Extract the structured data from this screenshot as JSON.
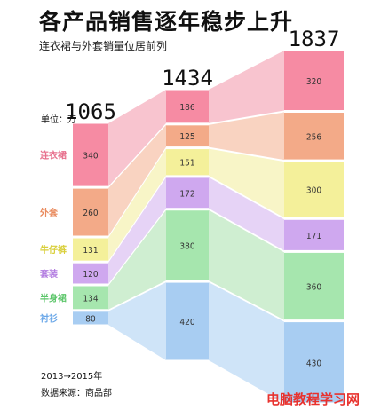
{
  "title": "各产品销售逐年稳步上升",
  "subtitle": "连衣裙与外套销量位居前列",
  "unit_label": "单位：万",
  "period": "2013→2015年",
  "source": "数据来源：商品部",
  "watermark": "电脑教程学习网",
  "colors": {
    "连衣裙": "#f68ba3",
    "外套": "#f3aa88",
    "牛仔裤": "#f4f09a",
    "套装": "#cfa8ef",
    "半身裙": "#a6e6ae",
    "衬衫": "#a8cdf2"
  },
  "link_colors": {
    "连衣裙": "#f8c4cf",
    "外套": "#f9d3c1",
    "牛仔裤": "#f8f5c7",
    "套装": "#e6d3f6",
    "半身裙": "#cfeed1",
    "衬衫": "#cfe4f8"
  },
  "label_colors": {
    "连衣裙": "#e76f8c",
    "外套": "#e98a5d",
    "牛仔裤": "#d9cf3a",
    "套装": "#b27ce0",
    "半身裙": "#5cc66a",
    "衬衫": "#6aa7e8"
  },
  "chart_data": {
    "type": "bar",
    "stacked": true,
    "categories": [
      "2013",
      "2014",
      "2015"
    ],
    "category_labels_visible": false,
    "totals": [
      1065,
      1434,
      1837
    ],
    "series": [
      {
        "name": "连衣裙",
        "values": [
          340,
          186,
          320
        ]
      },
      {
        "name": "外套",
        "values": [
          260,
          125,
          256
        ]
      },
      {
        "name": "牛仔裤",
        "values": [
          131,
          151,
          300
        ]
      },
      {
        "name": "套装",
        "values": [
          120,
          172,
          171
        ]
      },
      {
        "name": "半身裙",
        "values": [
          134,
          380,
          360
        ]
      },
      {
        "name": "衬衫",
        "values": [
          80,
          420,
          430
        ]
      }
    ],
    "bar_value_labels": [
      [
        "340",
        "260",
        "131",
        "120",
        "134",
        "80"
      ],
      [
        "186",
        "125",
        "151",
        "172",
        "380",
        "420"
      ],
      [
        "320",
        "256",
        "300",
        "171",
        "360",
        "430"
      ]
    ],
    "connectors_between_bars": true,
    "grid": false,
    "legend": "labels-left-of-first-bar"
  }
}
